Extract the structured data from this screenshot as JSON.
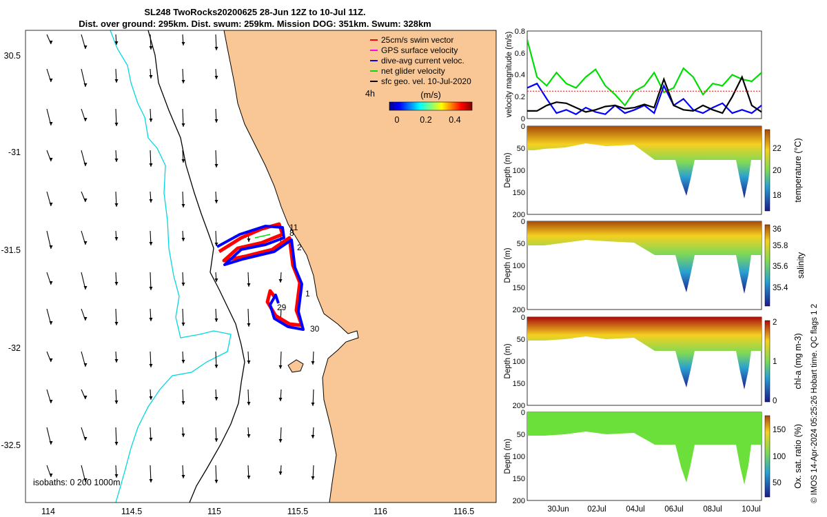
{
  "title": {
    "line1": "SL248 TwoRocks20200625 28-Jun 12Z to 10-Jul 11Z.",
    "line2": "Dist. over ground: 295km. Dist. swum: 259km. Mission DOG: 351km. Swum: 328km"
  },
  "credit": "© IMOS 14-Apr-2024 05:25:26 Hobart time. QC flags 1 2",
  "map": {
    "xticks": [
      "114",
      "114.5",
      "115",
      "115.5",
      "116",
      "116.5"
    ],
    "yticks": [
      "30.5",
      "-31",
      "-31.5",
      "-32",
      "-32.5"
    ],
    "isobaths_label": "isobaths: 0   200  1000m",
    "legend": [
      {
        "label": "25cm/s swim vector",
        "color": "#ff0000"
      },
      {
        "label": "GPS surface velocity",
        "color": "#ff00ff"
      },
      {
        "label": "dive-avg current veloc.",
        "color": "#0000ff"
      },
      {
        "label": "net glider velocity",
        "color": "#00dd00"
      },
      {
        "label": "sfc geo. vel. 10-Jul-2020",
        "color": "#000000"
      }
    ],
    "colorbar": {
      "title": "(m/s)",
      "ticks": [
        "0",
        "0.2",
        "0.4"
      ],
      "side_label": "4h"
    },
    "track_labels": [
      "11",
      "8",
      "2",
      "1",
      "29",
      "30"
    ]
  },
  "chart_data": [
    {
      "type": "line",
      "name": "velocity-magnitude",
      "ylabel": "velocity magnitude (m/s)",
      "ylim": [
        0,
        0.8
      ],
      "yticks": [
        "0",
        "0.2",
        "0.4",
        "0.6",
        "0.8"
      ],
      "x_days": [
        0,
        0.5,
        1,
        1.5,
        2,
        2.5,
        3,
        3.5,
        4,
        4.5,
        5,
        5.5,
        6,
        6.5,
        7,
        7.5,
        8,
        8.5,
        9,
        9.5,
        10,
        10.5,
        11,
        11.5,
        12
      ],
      "series": [
        {
          "name": "net glider velocity",
          "color": "#00dd00",
          "values": [
            0.72,
            0.38,
            0.3,
            0.42,
            0.32,
            0.28,
            0.38,
            0.45,
            0.3,
            0.22,
            0.12,
            0.25,
            0.3,
            0.42,
            0.24,
            0.28,
            0.46,
            0.38,
            0.22,
            0.32,
            0.3,
            0.4,
            0.36,
            0.34,
            0.42
          ]
        },
        {
          "name": "dive-avg current veloc.",
          "color": "#0000ff",
          "values": [
            0.28,
            0.32,
            0.18,
            0.05,
            0.08,
            0.04,
            0.1,
            0.06,
            0.04,
            0.12,
            0.05,
            0.08,
            0.12,
            0.05,
            0.3,
            0.12,
            0.18,
            0.08,
            0.05,
            0.1,
            0.14,
            0.05,
            0.08,
            0.05,
            0.12
          ]
        },
        {
          "name": "sfc geo. vel.",
          "color": "#000000",
          "values": [
            0.07,
            0.07,
            0.12,
            0.15,
            0.14,
            0.1,
            0.06,
            0.08,
            0.11,
            0.12,
            0.09,
            0.1,
            0.13,
            0.1,
            0.36,
            0.12,
            0.08,
            0.07,
            0.12,
            0.08,
            0.05,
            0.2,
            0.38,
            0.12,
            0.06
          ]
        },
        {
          "name": "25cm/s swim vector",
          "color": "#ff0000",
          "values": [
            0.25,
            0.25,
            0.25,
            0.25,
            0.25,
            0.25,
            0.25,
            0.25,
            0.25,
            0.25,
            0.25,
            0.25,
            0.25,
            0.25,
            0.25,
            0.25,
            0.25,
            0.25,
            0.25,
            0.25,
            0.25,
            0.25,
            0.25,
            0.25,
            0.25
          ]
        }
      ]
    },
    {
      "type": "heatmap",
      "name": "temperature",
      "ylabel": "Depth (m)",
      "colorbar_label": "temperature (°C)",
      "yticks": [
        "0",
        "50",
        "100",
        "150",
        "200"
      ],
      "colorbar_ticks": [
        "18",
        "20",
        "22"
      ],
      "clim": [
        17,
        23.5
      ]
    },
    {
      "type": "heatmap",
      "name": "salinity",
      "ylabel": "Depth (m)",
      "colorbar_label": "salinity",
      "yticks": [
        "0",
        "50",
        "100",
        "150",
        "200"
      ],
      "colorbar_ticks": [
        "35.4",
        "35.6",
        "35.8",
        "36"
      ],
      "clim": [
        35.3,
        36.05
      ]
    },
    {
      "type": "heatmap",
      "name": "chl-a",
      "ylabel": "Depth (m)",
      "colorbar_label": "chl-a (mg m-3)",
      "yticks": [
        "0",
        "50",
        "100",
        "150",
        "200"
      ],
      "colorbar_ticks": [
        "0",
        "1",
        "2"
      ],
      "clim": [
        0,
        2
      ]
    },
    {
      "type": "heatmap",
      "name": "oxygen",
      "ylabel": "Depth (m)",
      "colorbar_label": "Ox. sat. ratio (%)",
      "yticks": [
        "0",
        "50",
        "100",
        "150",
        "200"
      ],
      "colorbar_ticks": [
        "50",
        "100",
        "150"
      ],
      "clim": [
        25,
        175
      ]
    }
  ],
  "time_axis": {
    "labels": [
      "30Jun",
      "02Jul",
      "04Jul",
      "06Jul",
      "08Jul",
      "10Jul"
    ]
  },
  "colors": {
    "land": "#f9c795",
    "ocean": "#ffffff",
    "isobath_200": "#000000",
    "isobath_1000": "#00d8e0"
  }
}
